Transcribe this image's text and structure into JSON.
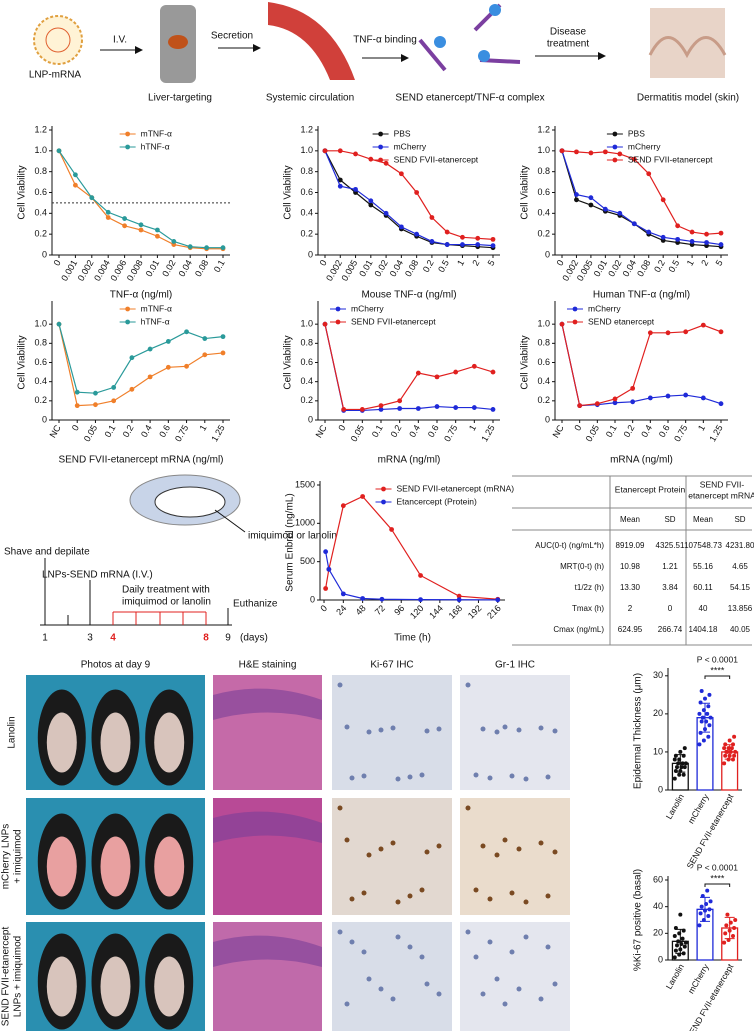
{
  "schematic": {
    "steps": [
      "LNP-mRNA",
      "Liver-targeting",
      "Systemic circulation",
      "SEND etanercept/TNF-α complex",
      "Dermatitis model (skin)"
    ],
    "arrows": [
      "I.V.",
      "Secretion",
      "TNF-α binding",
      "Disease",
      "treatment"
    ]
  },
  "chart_data": [
    {
      "type": "line",
      "xlabel": "TNF-α (ng/ml)",
      "ylabel": "Cell Viability",
      "legend": "upper center",
      "categories": [
        "0",
        "0.001",
        "0.002",
        "0.004",
        "0.006",
        "0.008",
        "0.01",
        "0.02",
        "0.04",
        "0.08",
        "0.1"
      ],
      "series": [
        {
          "name": "mTNF-α",
          "color": "#f07f2a",
          "values": [
            1.0,
            0.67,
            0.55,
            0.36,
            0.28,
            0.24,
            0.18,
            0.1,
            0.07,
            0.06,
            0.06
          ]
        },
        {
          "name": "hTNF-α",
          "color": "#2a9a9a",
          "values": [
            1.0,
            0.77,
            0.55,
            0.41,
            0.35,
            0.29,
            0.24,
            0.13,
            0.08,
            0.07,
            0.07
          ]
        }
      ],
      "hline": 0.5,
      "ylim": [
        0,
        1.2
      ],
      "yticks": [
        0,
        0.2,
        0.4,
        0.6,
        0.8,
        {
          "value": 1,
          "label": "1.0"
        },
        1.2
      ]
    },
    {
      "type": "line",
      "xlabel": "Mouse TNF-α (ng/ml)",
      "ylabel": "Cell Viability",
      "legend": "upper right",
      "categories": [
        "0",
        "0.002",
        "0.005",
        "0.01",
        "0.02",
        "0.04",
        "0.08",
        "0.2",
        "0.5",
        "1",
        "2",
        "5"
      ],
      "series": [
        {
          "name": "PBS",
          "color": "#111111",
          "values": [
            1.0,
            0.72,
            0.6,
            0.48,
            0.38,
            0.25,
            0.18,
            0.12,
            0.1,
            0.09,
            0.08,
            0.07
          ]
        },
        {
          "name": "mCherry",
          "color": "#1f2ad8",
          "values": [
            1.0,
            0.66,
            0.63,
            0.52,
            0.4,
            0.27,
            0.2,
            0.13,
            0.1,
            0.1,
            0.1,
            0.09
          ]
        },
        {
          "name": "SEND FVII-etanercept",
          "color": "#e0201f",
          "values": [
            1.0,
            1.0,
            0.97,
            0.92,
            0.88,
            0.78,
            0.6,
            0.36,
            0.22,
            0.17,
            0.16,
            0.15
          ]
        }
      ],
      "ylim": [
        0,
        1.2
      ],
      "yticks": [
        0,
        0.2,
        0.4,
        0.6,
        0.8,
        {
          "value": 1,
          "label": "1.0"
        },
        1.2
      ]
    },
    {
      "type": "line",
      "xlabel": "Human TNF-α (ng/ml)",
      "ylabel": "Cell Viability",
      "legend": "upper right",
      "categories": [
        "0",
        "0.002",
        "0.005",
        "0.01",
        "0.02",
        "0.04",
        "0.08",
        "0.2",
        "0.5",
        "1",
        "2",
        "5"
      ],
      "series": [
        {
          "name": "PBS",
          "color": "#111111",
          "values": [
            1.0,
            0.53,
            0.48,
            0.42,
            0.38,
            0.3,
            0.2,
            0.14,
            0.12,
            0.1,
            0.09,
            0.08
          ]
        },
        {
          "name": "mCherry",
          "color": "#1f2ad8",
          "values": [
            1.0,
            0.58,
            0.55,
            0.44,
            0.4,
            0.3,
            0.22,
            0.17,
            0.15,
            0.13,
            0.12,
            0.1
          ]
        },
        {
          "name": "SEND FVII-etanercept",
          "color": "#e0201f",
          "values": [
            1.0,
            0.99,
            0.98,
            0.99,
            0.97,
            0.92,
            0.78,
            0.53,
            0.28,
            0.22,
            0.2,
            0.21
          ]
        }
      ],
      "ylim": [
        0,
        1.2
      ],
      "yticks": [
        0,
        0.2,
        0.4,
        0.6,
        0.8,
        {
          "value": 1,
          "label": "1.0"
        },
        1.2
      ]
    },
    {
      "type": "line",
      "xlabel": "SEND FVII-etanercept mRNA (ng/ml)",
      "ylabel": "Cell Viability",
      "legend": "upper center",
      "categories": [
        "NC",
        "0",
        "0.05",
        "0.1",
        "0.2",
        "0.4",
        "0.6",
        "0.75",
        "1",
        "1.25"
      ],
      "series": [
        {
          "name": "mTNF-α",
          "color": "#f07f2a",
          "values": [
            1.0,
            0.15,
            0.16,
            0.2,
            0.32,
            0.45,
            0.55,
            0.56,
            0.68,
            0.7
          ]
        },
        {
          "name": "hTNF-α",
          "color": "#2a9a9a",
          "values": [
            1.0,
            0.29,
            0.28,
            0.34,
            0.65,
            0.74,
            0.82,
            0.92,
            0.85,
            0.87
          ]
        }
      ],
      "ylim": [
        0,
        1.2
      ],
      "yticks": [
        0,
        0.2,
        0.4,
        0.6,
        0.8,
        {
          "value": 1,
          "label": "1.0"
        }
      ]
    },
    {
      "type": "line",
      "xlabel": "mRNA (ng/ml)",
      "ylabel": "Cell Viability",
      "legend": "upper left",
      "categories": [
        "NC",
        "0",
        "0.05",
        "0.1",
        "0.2",
        "0.4",
        "0.6",
        "0.75",
        "1",
        "1.25"
      ],
      "series": [
        {
          "name": "mCherry",
          "color": "#1f2ad8",
          "values": [
            1.0,
            0.1,
            0.1,
            0.11,
            0.12,
            0.12,
            0.14,
            0.13,
            0.13,
            0.11
          ]
        },
        {
          "name": "SEND FVII-etanercept",
          "color": "#e0201f",
          "values": [
            1.0,
            0.11,
            0.11,
            0.15,
            0.2,
            0.49,
            0.45,
            0.5,
            0.56,
            0.5
          ]
        }
      ],
      "ylim": [
        0,
        1.2
      ],
      "yticks": [
        0,
        0.2,
        0.4,
        0.6,
        0.8,
        {
          "value": 1,
          "label": "1.0"
        }
      ]
    },
    {
      "type": "line",
      "xlabel": "mRNA (ng/ml)",
      "ylabel": "Cell Viability",
      "legend": "upper left",
      "categories": [
        "NC",
        "0",
        "0.05",
        "0.1",
        "0.2",
        "0.4",
        "0.6",
        "0.75",
        "1",
        "1.25"
      ],
      "series": [
        {
          "name": "mCherry",
          "color": "#1f2ad8",
          "values": [
            1.0,
            0.15,
            0.16,
            0.18,
            0.19,
            0.23,
            0.25,
            0.26,
            0.23,
            0.17
          ]
        },
        {
          "name": "SEND etanercept",
          "color": "#e0201f",
          "values": [
            1.0,
            0.15,
            0.17,
            0.22,
            0.33,
            0.91,
            0.91,
            0.92,
            0.99,
            0.92
          ]
        }
      ],
      "ylim": [
        0,
        1.2
      ],
      "yticks": [
        0,
        0.2,
        0.4,
        0.6,
        0.8,
        {
          "value": 1,
          "label": "1.0"
        }
      ]
    },
    {
      "type": "line",
      "xlabel": "Time (h)",
      "ylabel": "Serum Enbrel (ng/mL)",
      "legend": "upper right",
      "series": [
        {
          "name": "SEND FVII-etanercept (mRNA)",
          "color": "#e0201f",
          "x": [
            2,
            6,
            24,
            48,
            84,
            120,
            168,
            216
          ],
          "values": [
            150,
            400,
            1230,
            1350,
            920,
            320,
            50,
            10
          ]
        },
        {
          "name": "Etancercept (Protein)",
          "color": "#1f2ad8",
          "x": [
            2,
            6,
            24,
            48,
            72,
            120,
            168,
            216
          ],
          "values": [
            630,
            400,
            80,
            20,
            10,
            5,
            3,
            2
          ]
        }
      ],
      "xlim": [
        -5,
        225
      ],
      "xticks": [
        0,
        24,
        48,
        72,
        96,
        120,
        144,
        168,
        192,
        216
      ],
      "ylim": [
        0,
        1500
      ],
      "yticks": [
        0,
        500,
        1000,
        1500
      ]
    },
    {
      "type": "bar",
      "ylabel": "Epidermal Thickness (μm)",
      "annotation": "P < 0.0001",
      "stars": "****",
      "categories": [
        "Lanolin",
        "mCherry",
        "SEND FVII-etanercept"
      ],
      "colors": [
        "#111111",
        "#1f2ad8",
        "#e0201f"
      ],
      "values": [
        7,
        19,
        10
      ],
      "errors": [
        2.3,
        3.8,
        1.9
      ],
      "points": [
        [
          3,
          4,
          4,
          5,
          5,
          6,
          6,
          6,
          7,
          7,
          7,
          8,
          8,
          9,
          9,
          10,
          11
        ],
        [
          12,
          13,
          14,
          15,
          16,
          17,
          18,
          18,
          19,
          19,
          20,
          20,
          21,
          22,
          23,
          24,
          25,
          26
        ],
        [
          7,
          8,
          8,
          9,
          9,
          9,
          10,
          10,
          10,
          10,
          11,
          11,
          11,
          12,
          12,
          13,
          14
        ]
      ],
      "ylim": [
        0,
        31
      ],
      "yticks": [
        0,
        10,
        20,
        30
      ]
    },
    {
      "type": "bar",
      "ylabel": "%Ki-67 positive (basal)",
      "annotation": "P < 0.0001",
      "stars": "****",
      "categories": [
        "Lanolin",
        "mCherry",
        "SEND FVII-etanercept"
      ],
      "colors": [
        "#111111",
        "#1f2ad8",
        "#e0201f"
      ],
      "values": [
        14,
        38,
        24
      ],
      "errors": [
        9,
        9,
        8
      ],
      "points": [
        [
          2,
          4,
          5,
          7,
          8,
          10,
          11,
          12,
          13,
          14,
          16,
          18,
          20,
          22,
          24,
          34
        ],
        [
          26,
          30,
          33,
          35,
          37,
          38,
          40,
          42,
          44,
          48,
          52
        ],
        [
          13,
          15,
          18,
          20,
          22,
          24,
          26,
          28,
          30,
          34
        ]
      ],
      "ylim": [
        0,
        60
      ],
      "yticks": [
        0,
        20,
        40,
        60
      ]
    }
  ],
  "timeline": {
    "agent": "imiquimod or lanolin",
    "events": [
      "Shave and depilate",
      "LNPs-SEND mRNA (I.V.)",
      "Daily treatment with",
      "imiquimod or lanolin",
      "Euthanize"
    ],
    "days": [
      "1",
      "3",
      "4",
      "8",
      "9"
    ],
    "unit": "(days)"
  },
  "pk_table": {
    "groups": [
      "Etanercept Protein",
      "SEND FVII-",
      "etanercept mRNA"
    ],
    "subheaders": [
      "Mean",
      "SD",
      "Mean",
      "SD"
    ],
    "rows": [
      [
        "AUC(0-t) (ng/mL*h)",
        "8919.09",
        "4325.51",
        "107548.73",
        "4231.80"
      ],
      [
        "MRT(0-t) (h)",
        "10.98",
        "1.21",
        "55.16",
        "4.65"
      ],
      [
        "t1/2z (h)",
        "13.30",
        "3.84",
        "60.11",
        "54.15"
      ],
      [
        "Tmax (h)",
        "2",
        "0",
        "40",
        "13.856"
      ],
      [
        "Cmax (ng/mL)",
        "624.95",
        "266.74",
        "1404.18",
        "40.05"
      ]
    ]
  },
  "histology": {
    "columns": [
      "Photos at day 9",
      "H&E staining",
      "Ki-67 IHC",
      "Gr-1 IHC"
    ],
    "rows": [
      [
        "Lanolin"
      ],
      [
        "mCherry LNPs",
        "+ imiquimod"
      ],
      [
        "SEND FVII-etanercept",
        "LNPs + imiquimod"
      ]
    ]
  }
}
